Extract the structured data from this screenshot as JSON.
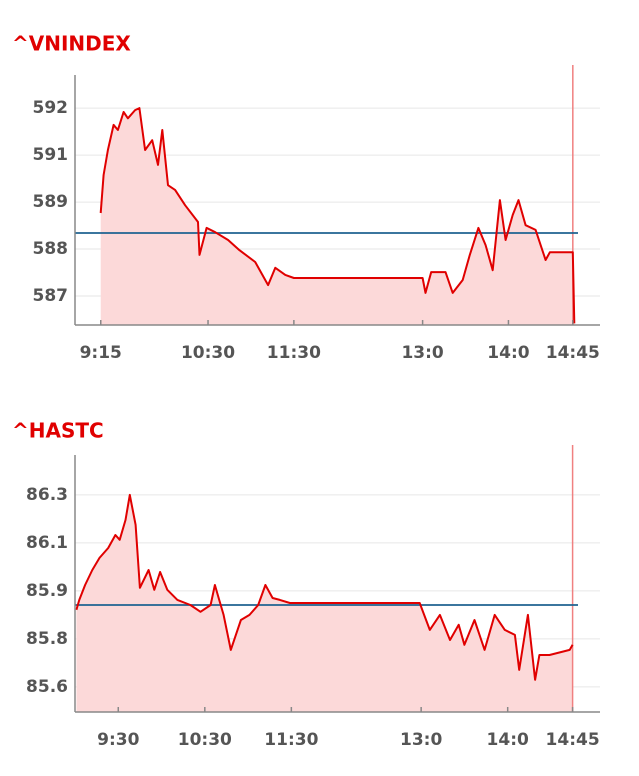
{
  "chart_data": [
    {
      "type": "line",
      "title": "^VNINDEX",
      "x": [
        555,
        557,
        560,
        564,
        567,
        571,
        574,
        579,
        582,
        586,
        591,
        595,
        598,
        602,
        607,
        614,
        623,
        624,
        629,
        635,
        644,
        652,
        663,
        672,
        677,
        684,
        690,
        780,
        782,
        786,
        796,
        801,
        808,
        813,
        819,
        824,
        829,
        834,
        838,
        843,
        847,
        852,
        859,
        866,
        869,
        885,
        886
      ],
      "values": [
        589.12,
        590.09,
        590.73,
        591.37,
        591.24,
        591.7,
        591.54,
        591.75,
        591.8,
        590.73,
        590.98,
        590.35,
        591.24,
        589.83,
        589.71,
        589.32,
        588.89,
        588.05,
        588.74,
        588.63,
        588.43,
        588.17,
        587.87,
        587.28,
        587.72,
        587.54,
        587.46,
        587.46,
        587.08,
        587.61,
        587.61,
        587.08,
        587.41,
        588.05,
        588.74,
        588.3,
        587.66,
        589.45,
        588.43,
        589.07,
        589.45,
        588.81,
        588.69,
        587.92,
        588.12,
        588.12,
        586.3
      ],
      "color": "#e00000",
      "fill_color": "#fcd9d9",
      "reference_line": 588.61,
      "reference_color": "#1f6390",
      "xlim": [
        537,
        904
      ],
      "ylim": [
        586.26,
        592.39
      ],
      "xticks": [
        {
          "value": 555,
          "label": "9:15"
        },
        {
          "value": 630,
          "label": "10:30"
        },
        {
          "value": 690,
          "label": "11:30"
        },
        {
          "value": 780,
          "label": "13:0"
        },
        {
          "value": 840,
          "label": "14:0"
        },
        {
          "value": 885,
          "label": "14:45"
        }
      ],
      "yticks": [
        {
          "value": 591.8,
          "label": "592"
        },
        {
          "value": 590.6,
          "label": "591"
        },
        {
          "value": 589.4,
          "label": "589"
        },
        {
          "value": 588.2,
          "label": "588"
        },
        {
          "value": 587.0,
          "label": "587"
        }
      ],
      "grid": true
    },
    {
      "type": "line",
      "title": "^HASTC",
      "x": [
        541,
        543,
        547,
        552,
        557,
        563,
        568,
        571,
        575,
        578,
        582,
        585,
        591,
        595,
        599,
        604,
        611,
        620,
        627,
        634,
        637,
        640,
        643,
        648,
        655,
        661,
        667,
        672,
        677,
        682,
        689,
        779,
        786,
        793,
        800,
        806,
        810,
        817,
        824,
        831,
        838,
        845,
        848,
        854,
        859,
        862,
        869,
        883,
        885
      ],
      "values": [
        85.873,
        85.908,
        85.961,
        86.014,
        86.057,
        86.092,
        86.138,
        86.121,
        86.191,
        86.28,
        86.174,
        85.951,
        86.014,
        85.944,
        86.007,
        85.944,
        85.908,
        85.89,
        85.866,
        85.89,
        85.961,
        85.908,
        85.855,
        85.731,
        85.837,
        85.855,
        85.89,
        85.961,
        85.915,
        85.908,
        85.897,
        85.897,
        85.802,
        85.855,
        85.766,
        85.82,
        85.749,
        85.837,
        85.731,
        85.855,
        85.802,
        85.784,
        85.66,
        85.855,
        85.625,
        85.713,
        85.713,
        85.731,
        85.749
      ],
      "color": "#e00000",
      "fill_color": "#fcd9d9",
      "reference_line": 85.89,
      "reference_color": "#1f6390",
      "xlim": [
        540,
        904
      ],
      "ylim": [
        85.511,
        86.386
      ],
      "xticks": [
        {
          "value": 570,
          "label": "9:30"
        },
        {
          "value": 630,
          "label": "10:30"
        },
        {
          "value": 690,
          "label": "11:30"
        },
        {
          "value": 780,
          "label": "13:0"
        },
        {
          "value": 840,
          "label": "14:0"
        },
        {
          "value": 885,
          "label": "14:45"
        }
      ],
      "yticks": [
        {
          "value": 86.28,
          "label": "86.3"
        },
        {
          "value": 86.11,
          "label": "86.1"
        },
        {
          "value": 85.94,
          "label": "85.9"
        },
        {
          "value": 85.77,
          "label": "85.8"
        },
        {
          "value": 85.6,
          "label": "85.6"
        }
      ],
      "grid": true
    }
  ]
}
